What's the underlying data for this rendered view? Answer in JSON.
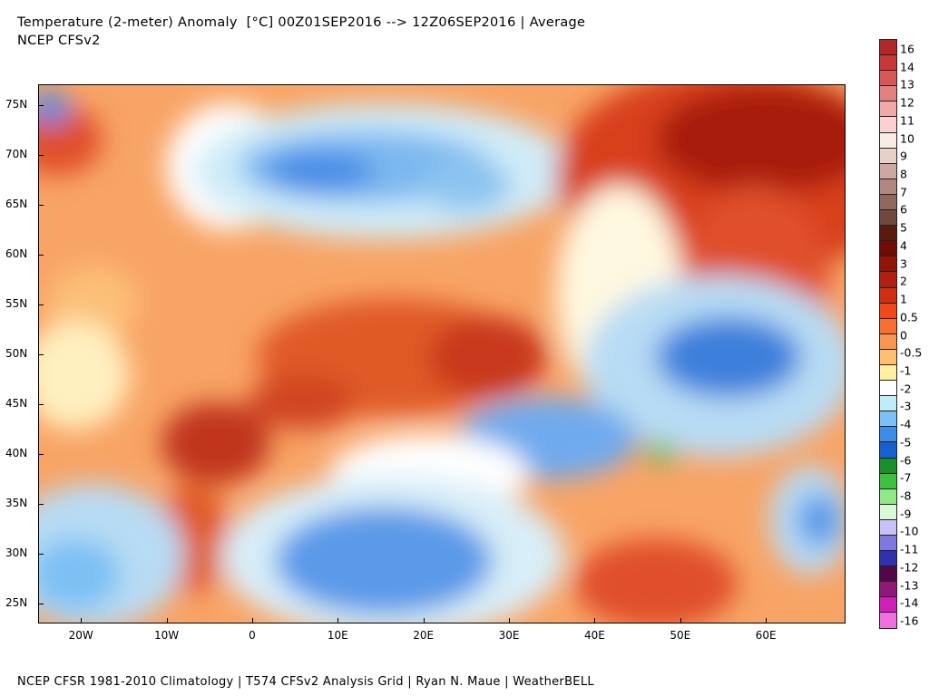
{
  "header": {
    "title_line1": "Temperature (2-meter) Anomaly  [°C] 00Z01SEP2016 --> 12Z06SEP2016 | Average",
    "title_line2": "NCEP CFSv2"
  },
  "map": {
    "lat_labels": [
      "75N",
      "70N",
      "65N",
      "60N",
      "55N",
      "50N",
      "45N",
      "40N",
      "35N",
      "30N",
      "25N"
    ],
    "lat_values": [
      75,
      70,
      65,
      60,
      55,
      50,
      45,
      40,
      35,
      30,
      25
    ],
    "lon_labels": [
      "20W",
      "10W",
      "0",
      "10E",
      "20E",
      "30E",
      "40E",
      "50E",
      "60E"
    ],
    "lon_values": [
      -20,
      -10,
      0,
      10,
      20,
      30,
      40,
      50,
      60
    ],
    "lon_range": [
      -25,
      69.3
    ],
    "lat_range": [
      23,
      77.1
    ]
  },
  "colorbar": {
    "labels": [
      "16",
      "14",
      "13",
      "12",
      "11",
      "10",
      "9",
      "8",
      "7",
      "6",
      "5",
      "4",
      "3",
      "2",
      "1",
      "0.5",
      "0",
      "-0.5",
      "-1",
      "-2",
      "-3",
      "-4",
      "-5",
      "-6",
      "-7",
      "-8",
      "-9",
      "-10",
      "-11",
      "-12",
      "-13",
      "-14",
      "-16"
    ],
    "colors": [
      "#b02828",
      "#c83838",
      "#d85858",
      "#e48080",
      "#f0a8a8",
      "#fad0d0",
      "#f8ece6",
      "#e6d0c8",
      "#cca8a0",
      "#b08880",
      "#906860",
      "#704840",
      "#5a1a10",
      "#700c04",
      "#901408",
      "#b02010",
      "#d03010",
      "#f04818",
      "#f87030",
      "#f89850",
      "#fcc070",
      "#fff0a0",
      "#ffffff",
      "#c0ecf8",
      "#7cc0f4",
      "#3c8ce8",
      "#1860d0",
      "#18902a",
      "#40c040",
      "#90e888",
      "#d8f8d8",
      "#c8c0f8",
      "#8078e0",
      "#3030b0",
      "#500848",
      "#901878",
      "#d020b8",
      "#f070e0"
    ]
  },
  "footer": "NCEP CFSR 1981-2010 Climatology | T574 CFSv2 Analysis Grid | Ryan N. Maue | WeatherBELL"
}
